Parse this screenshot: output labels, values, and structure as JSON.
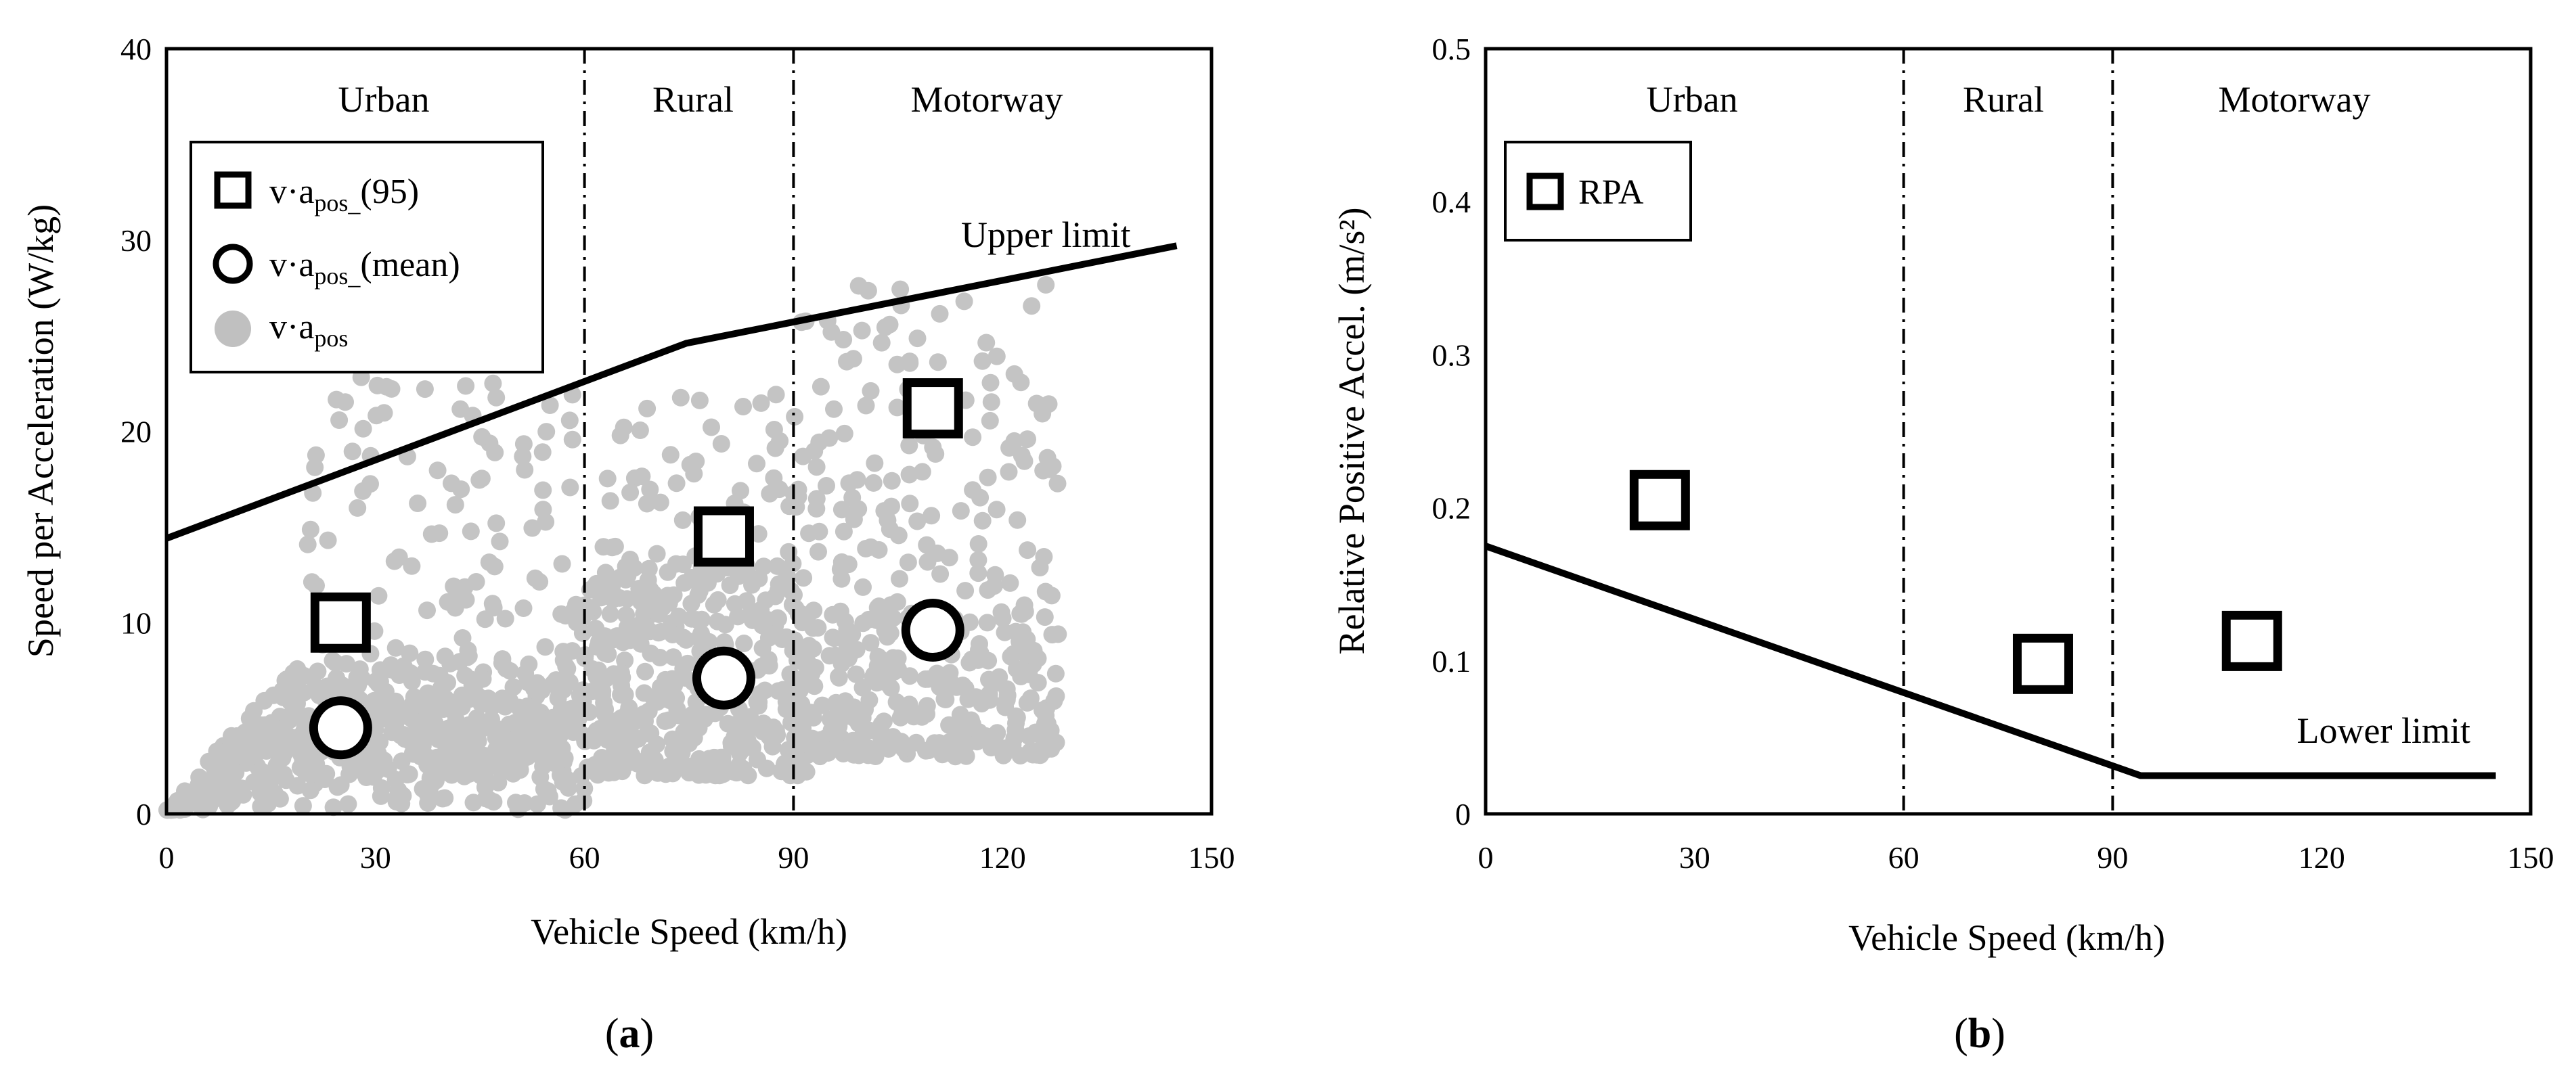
{
  "chart_data": [
    {
      "type": "scatter",
      "panel_label": "a",
      "xlabel": "Vehicle Speed (km/h)",
      "ylabel": "Speed per Acceleration (W/kg)",
      "xlim": [
        0,
        150
      ],
      "ylim": [
        0,
        40
      ],
      "xticks": [
        0,
        30,
        60,
        90,
        120,
        150
      ],
      "yticks": [
        0,
        10,
        20,
        30,
        40
      ],
      "regions": [
        "Urban",
        "Rural",
        "Motorway"
      ],
      "region_boundaries": [
        60,
        90
      ],
      "legend": {
        "position": "top-left",
        "items": [
          {
            "marker": "square",
            "base": "v·a",
            "sub": "pos_",
            "suffix": "(95)"
          },
          {
            "marker": "circle",
            "base": "v·a",
            "sub": "pos_",
            "suffix": "(mean)"
          },
          {
            "marker": "dot",
            "base": "v·a",
            "sub": "pos",
            "suffix": ""
          }
        ]
      },
      "upper_limit": {
        "label": "Upper limit",
        "x": [
          0,
          74.6,
          145
        ],
        "y": [
          14.4,
          24.6,
          29.7
        ]
      },
      "series": [
        {
          "name": "v·a_pos_(95)",
          "marker": "square",
          "x": [
            25,
            80,
            110
          ],
          "y": [
            10.0,
            14.5,
            21.2
          ]
        },
        {
          "name": "v·a_pos_(mean)",
          "marker": "circle",
          "x": [
            25,
            80,
            110
          ],
          "y": [
            4.5,
            7.1,
            9.6
          ]
        },
        {
          "name": "v·a_pos",
          "marker": "dot",
          "note": "dense point cloud, approx. 0-130 km/h",
          "clusters": [
            {
              "x_range": [
                0,
                60
              ],
              "y_peak": 4.5,
              "count": 650
            },
            {
              "x_range": [
                20,
                60
              ],
              "y_range": [
                10,
                23
              ],
              "count": 90
            },
            {
              "x_range": [
                60,
                92
              ],
              "y_range": [
                2,
                13
              ],
              "count": 380
            },
            {
              "x_range": [
                62,
                90
              ],
              "y_range": [
                12,
                22
              ],
              "count": 60
            },
            {
              "x_range": [
                90,
                128
              ],
              "y_range": [
                3,
                10
              ],
              "count": 260
            },
            {
              "x_range": [
                90,
                128
              ],
              "y_range": [
                10,
                28
              ],
              "count": 160
            }
          ]
        }
      ]
    },
    {
      "type": "scatter",
      "panel_label": "b",
      "xlabel": "Vehicle Speed (km/h)",
      "ylabel": "Relative Positive Accel. (m/s²)",
      "xlim": [
        0,
        150
      ],
      "ylim": [
        0,
        0.5
      ],
      "xticks": [
        0,
        30,
        60,
        90,
        120,
        150
      ],
      "yticks": [
        "0",
        "0.1",
        "0.2",
        "0.3",
        "0.4",
        "0.5"
      ],
      "regions": [
        "Urban",
        "Rural",
        "Motorway"
      ],
      "region_boundaries": [
        60,
        90
      ],
      "legend": {
        "position": "top-left",
        "items": [
          {
            "marker": "square",
            "label": "RPA"
          }
        ]
      },
      "lower_limit": {
        "label": "Lower limit",
        "x": [
          0,
          94,
          145
        ],
        "y": [
          0.175,
          0.025,
          0.025
        ]
      },
      "series": [
        {
          "name": "RPA",
          "marker": "square",
          "x": [
            25,
            80,
            110
          ],
          "y": [
            0.205,
            0.098,
            0.113
          ]
        }
      ]
    }
  ]
}
